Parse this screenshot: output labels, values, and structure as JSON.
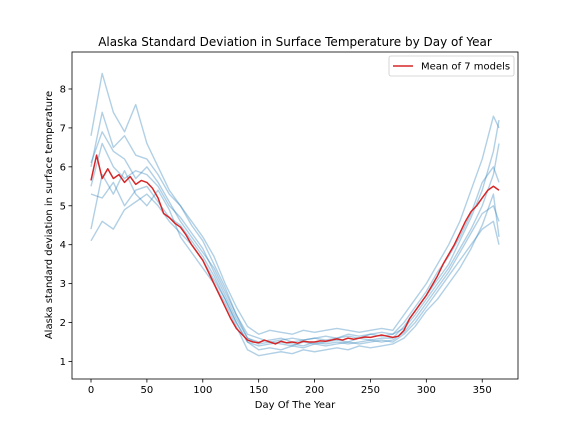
{
  "chart_data": {
    "type": "line",
    "title": "Alaska Standard Deviation in Surface Temperature by Day of Year",
    "xlabel": "Day Of The Year",
    "ylabel": "Alaska standard deviation in surface temperature",
    "xlim": [
      -17,
      382
    ],
    "ylim": [
      0.55,
      8.95
    ],
    "xticks": [
      0,
      50,
      100,
      150,
      200,
      250,
      300,
      350
    ],
    "yticks": [
      1,
      2,
      3,
      4,
      5,
      6,
      7,
      8
    ],
    "grid": false,
    "legend": {
      "position": "top-right",
      "entries": [
        "Mean of 7 models"
      ]
    },
    "colors": {
      "mean": "#d62728",
      "models": "#1f77b4"
    },
    "mean_series": {
      "name": "Mean of 7 models",
      "x": [
        0,
        5,
        10,
        15,
        20,
        25,
        30,
        35,
        40,
        45,
        50,
        55,
        60,
        65,
        70,
        75,
        80,
        85,
        90,
        95,
        100,
        105,
        110,
        115,
        120,
        125,
        130,
        135,
        140,
        145,
        150,
        155,
        160,
        165,
        170,
        175,
        180,
        185,
        190,
        195,
        200,
        205,
        210,
        215,
        220,
        225,
        230,
        235,
        240,
        245,
        250,
        255,
        260,
        265,
        270,
        275,
        280,
        285,
        290,
        295,
        300,
        305,
        310,
        315,
        320,
        325,
        330,
        335,
        340,
        345,
        350,
        355,
        360,
        365
      ],
      "y": [
        5.65,
        6.3,
        5.7,
        5.95,
        5.7,
        5.8,
        5.6,
        5.75,
        5.55,
        5.65,
        5.6,
        5.45,
        5.2,
        4.8,
        4.7,
        4.55,
        4.45,
        4.25,
        4.0,
        3.8,
        3.6,
        3.3,
        3.0,
        2.7,
        2.4,
        2.1,
        1.85,
        1.7,
        1.55,
        1.5,
        1.48,
        1.55,
        1.5,
        1.45,
        1.52,
        1.48,
        1.5,
        1.47,
        1.52,
        1.5,
        1.5,
        1.53,
        1.52,
        1.55,
        1.58,
        1.55,
        1.6,
        1.57,
        1.6,
        1.63,
        1.62,
        1.65,
        1.68,
        1.65,
        1.62,
        1.65,
        1.8,
        2.1,
        2.3,
        2.5,
        2.7,
        2.95,
        3.2,
        3.5,
        3.75,
        4.0,
        4.3,
        4.6,
        4.85,
        5.0,
        5.2,
        5.4,
        5.5,
        5.4
      ]
    },
    "model_series": [
      {
        "x": [
          0,
          10,
          20,
          30,
          40,
          50,
          60,
          70,
          80,
          90,
          100,
          110,
          120,
          130,
          140,
          150,
          160,
          170,
          180,
          190,
          200,
          210,
          220,
          230,
          240,
          250,
          260,
          270,
          280,
          290,
          300,
          310,
          320,
          330,
          340,
          350,
          360,
          365
        ],
        "y": [
          6.0,
          7.4,
          6.5,
          6.8,
          6.3,
          6.2,
          5.8,
          5.3,
          5.0,
          4.5,
          4.1,
          3.5,
          2.9,
          2.2,
          1.7,
          1.6,
          1.5,
          1.45,
          1.4,
          1.5,
          1.45,
          1.5,
          1.55,
          1.5,
          1.6,
          1.55,
          1.6,
          1.6,
          1.9,
          2.3,
          2.7,
          3.1,
          3.5,
          4.1,
          4.7,
          5.4,
          6.4,
          7.2
        ]
      },
      {
        "x": [
          0,
          10,
          20,
          30,
          40,
          50,
          60,
          70,
          80,
          90,
          100,
          110,
          120,
          130,
          140,
          150,
          160,
          170,
          180,
          190,
          200,
          210,
          220,
          230,
          240,
          250,
          260,
          270,
          280,
          290,
          300,
          310,
          320,
          330,
          340,
          350,
          360,
          365
        ],
        "y": [
          4.1,
          4.6,
          4.4,
          4.9,
          5.1,
          5.3,
          5.0,
          4.6,
          4.3,
          4.0,
          3.6,
          3.1,
          2.6,
          2.0,
          1.5,
          1.3,
          1.35,
          1.3,
          1.4,
          1.35,
          1.45,
          1.4,
          1.45,
          1.5,
          1.45,
          1.5,
          1.55,
          1.5,
          1.7,
          2.0,
          2.4,
          2.8,
          3.2,
          3.6,
          4.0,
          4.4,
          4.6,
          4.0
        ]
      },
      {
        "x": [
          0,
          10,
          20,
          30,
          40,
          50,
          60,
          70,
          80,
          90,
          100,
          110,
          120,
          130,
          140,
          150,
          160,
          170,
          180,
          190,
          200,
          210,
          220,
          230,
          240,
          250,
          260,
          270,
          280,
          290,
          300,
          310,
          320,
          330,
          340,
          350,
          360,
          365
        ],
        "y": [
          5.5,
          6.6,
          6.0,
          5.7,
          5.9,
          5.8,
          5.5,
          5.0,
          4.7,
          4.3,
          3.9,
          3.3,
          2.7,
          2.1,
          1.6,
          1.5,
          1.55,
          1.6,
          1.5,
          1.55,
          1.6,
          1.55,
          1.6,
          1.65,
          1.6,
          1.7,
          1.65,
          1.7,
          2.0,
          2.4,
          2.8,
          3.3,
          3.7,
          4.2,
          4.8,
          5.6,
          6.0,
          5.6
        ]
      },
      {
        "x": [
          0,
          10,
          20,
          30,
          40,
          50,
          60,
          70,
          80,
          90,
          100,
          110,
          120,
          130,
          140,
          150,
          160,
          170,
          180,
          190,
          200,
          210,
          220,
          230,
          240,
          250,
          260,
          270,
          280,
          290,
          300,
          310,
          320,
          330,
          340,
          350,
          360,
          365
        ],
        "y": [
          6.8,
          8.4,
          7.4,
          6.9,
          7.6,
          6.6,
          6.0,
          5.4,
          5.0,
          4.6,
          4.2,
          3.7,
          3.0,
          2.4,
          1.9,
          1.7,
          1.8,
          1.75,
          1.7,
          1.8,
          1.75,
          1.8,
          1.85,
          1.8,
          1.75,
          1.8,
          1.85,
          1.8,
          2.2,
          2.6,
          3.0,
          3.5,
          4.0,
          4.6,
          5.4,
          6.2,
          7.3,
          7.0
        ]
      },
      {
        "x": [
          0,
          10,
          20,
          30,
          40,
          50,
          60,
          70,
          80,
          90,
          100,
          110,
          120,
          130,
          140,
          150,
          160,
          170,
          180,
          190,
          200,
          210,
          220,
          230,
          240,
          250,
          260,
          270,
          280,
          290,
          300,
          310,
          320,
          330,
          340,
          350,
          360,
          365
        ],
        "y": [
          5.3,
          5.2,
          5.6,
          5.0,
          5.4,
          5.5,
          5.1,
          4.7,
          4.5,
          4.1,
          3.7,
          3.2,
          2.6,
          2.0,
          1.5,
          1.4,
          1.45,
          1.5,
          1.45,
          1.4,
          1.5,
          1.45,
          1.5,
          1.45,
          1.5,
          1.55,
          1.5,
          1.55,
          1.75,
          2.1,
          2.5,
          2.9,
          3.3,
          3.8,
          4.3,
          4.8,
          5.0,
          4.6
        ]
      },
      {
        "x": [
          0,
          10,
          20,
          30,
          40,
          50,
          60,
          70,
          80,
          90,
          100,
          110,
          120,
          130,
          140,
          150,
          160,
          170,
          180,
          190,
          200,
          210,
          220,
          230,
          240,
          250,
          260,
          270,
          280,
          290,
          300,
          310,
          320,
          330,
          340,
          350,
          360,
          365
        ],
        "y": [
          4.4,
          5.8,
          5.3,
          5.9,
          5.3,
          5.0,
          5.4,
          4.9,
          4.2,
          3.8,
          3.4,
          3.0,
          2.5,
          1.9,
          1.3,
          1.15,
          1.2,
          1.25,
          1.2,
          1.3,
          1.25,
          1.3,
          1.35,
          1.3,
          1.4,
          1.35,
          1.4,
          1.45,
          1.6,
          1.9,
          2.3,
          2.6,
          3.0,
          3.4,
          3.9,
          4.5,
          5.3,
          4.2
        ]
      },
      {
        "x": [
          0,
          10,
          20,
          30,
          40,
          50,
          60,
          70,
          80,
          90,
          100,
          110,
          120,
          130,
          140,
          150,
          160,
          170,
          180,
          190,
          200,
          210,
          220,
          230,
          240,
          250,
          260,
          270,
          280,
          290,
          300,
          310,
          320,
          330,
          340,
          350,
          360,
          365
        ],
        "y": [
          6.1,
          6.9,
          6.4,
          6.2,
          5.7,
          6.0,
          5.6,
          5.1,
          4.6,
          4.2,
          3.8,
          3.4,
          2.8,
          2.2,
          1.6,
          1.45,
          1.5,
          1.55,
          1.6,
          1.55,
          1.6,
          1.65,
          1.6,
          1.7,
          1.65,
          1.7,
          1.75,
          1.7,
          1.85,
          2.2,
          2.6,
          3.0,
          3.4,
          3.9,
          4.4,
          5.0,
          5.8,
          6.6
        ]
      }
    ]
  }
}
